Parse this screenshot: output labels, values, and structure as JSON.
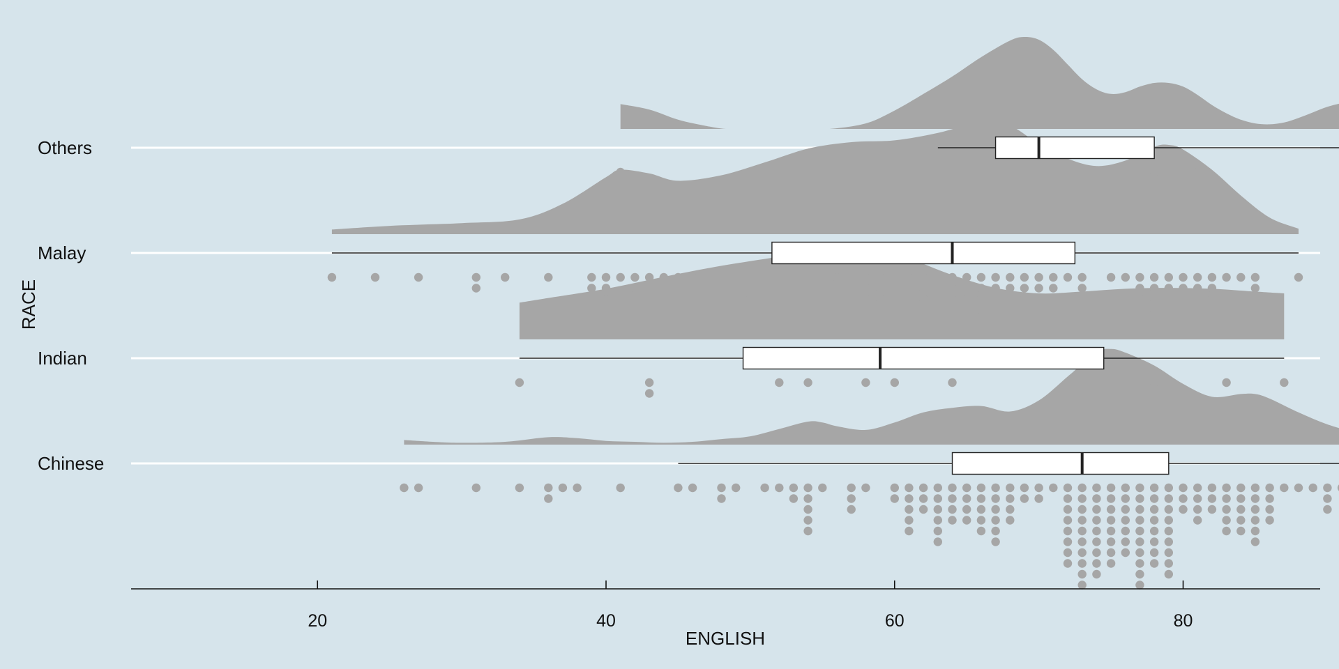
{
  "chart_data": {
    "type": "raincloud",
    "orientation": "horizontal",
    "title": "",
    "xlabel": "ENGLISH",
    "ylabel": "RACE",
    "xlim": [
      17,
      99
    ],
    "x_ticks": [
      20,
      40,
      60,
      80
    ],
    "grid": "horizontal gridlines at each category",
    "legend": "none",
    "colors": {
      "background": "#d6e4eb",
      "cloud": "#a6a6a6",
      "dots": "#a6a6a6",
      "box_fill": "#ffffff",
      "box_stroke": "#222222",
      "grid": "#ffffff",
      "axis": "#111111"
    },
    "categories": [
      "Others",
      "Malay",
      "Indian",
      "Chinese"
    ],
    "series": [
      {
        "name": "Others",
        "box": {
          "whisker_low": 63,
          "q1": 67,
          "median": 70,
          "q3": 78,
          "whisker_high": 92
        },
        "density": {
          "x": [
            41,
            43,
            45,
            47,
            48.3,
            50,
            52,
            54,
            55.5,
            58,
            60,
            62,
            64,
            66,
            68,
            69,
            70,
            71,
            72,
            73,
            74,
            75,
            76,
            77,
            78,
            79,
            80,
            81,
            82,
            83,
            84,
            85,
            86,
            87,
            88,
            89,
            90,
            91,
            92
          ],
          "y": [
            0.27,
            0.21,
            0.1,
            0.03,
            0.0,
            0.0,
            0.0,
            0.0,
            0.0,
            0.06,
            0.2,
            0.38,
            0.57,
            0.78,
            0.96,
            1.0,
            0.97,
            0.86,
            0.7,
            0.54,
            0.43,
            0.38,
            0.4,
            0.46,
            0.5,
            0.5,
            0.46,
            0.37,
            0.26,
            0.17,
            0.1,
            0.06,
            0.05,
            0.07,
            0.12,
            0.18,
            0.24,
            0.28,
            0.3
          ]
        },
        "points": [
          [
            41,
            1
          ],
          [
            63,
            1
          ],
          [
            67,
            1
          ],
          [
            68,
            1
          ],
          [
            70,
            1
          ],
          [
            71,
            1
          ],
          [
            78,
            1
          ],
          [
            81,
            1
          ],
          [
            92,
            1
          ]
        ]
      },
      {
        "name": "Malay",
        "box": {
          "whisker_low": 21,
          "q1": 51.5,
          "median": 64,
          "q3": 72.5,
          "whisker_high": 88
        },
        "density": {
          "x": [
            21,
            25,
            30,
            34,
            37,
            40,
            41,
            43,
            45,
            48,
            51,
            54,
            57,
            60,
            63,
            66,
            68,
            70,
            72,
            74,
            76,
            78,
            79,
            80,
            82,
            84,
            86,
            88
          ],
          "y": [
            0.05,
            0.09,
            0.12,
            0.16,
            0.33,
            0.62,
            0.7,
            0.66,
            0.58,
            0.64,
            0.78,
            0.93,
            1.0,
            1.02,
            1.1,
            1.22,
            1.18,
            0.98,
            0.82,
            0.74,
            0.8,
            0.95,
            0.97,
            0.92,
            0.7,
            0.42,
            0.18,
            0.06
          ]
        },
        "points": [
          [
            21,
            1
          ],
          [
            24,
            1
          ],
          [
            27,
            1
          ],
          [
            31,
            2
          ],
          [
            33,
            1
          ],
          [
            36,
            1
          ],
          [
            39,
            2
          ],
          [
            40,
            4
          ],
          [
            41,
            1
          ],
          [
            42,
            2
          ],
          [
            43,
            1
          ],
          [
            44,
            2
          ],
          [
            45,
            1
          ],
          [
            46,
            1
          ],
          [
            49,
            3
          ],
          [
            50,
            3
          ],
          [
            52,
            1
          ],
          [
            53,
            1
          ],
          [
            54,
            2
          ],
          [
            55,
            1
          ],
          [
            56,
            1
          ],
          [
            57,
            3
          ],
          [
            58,
            3
          ],
          [
            59,
            3
          ],
          [
            60,
            3
          ],
          [
            61,
            1
          ],
          [
            62,
            3
          ],
          [
            63,
            3
          ],
          [
            64,
            4
          ],
          [
            65,
            3
          ],
          [
            66,
            4
          ],
          [
            67,
            3
          ],
          [
            68,
            3
          ],
          [
            69,
            3
          ],
          [
            70,
            4
          ],
          [
            71,
            2
          ],
          [
            72,
            1
          ],
          [
            73,
            3
          ],
          [
            75,
            1
          ],
          [
            76,
            1
          ],
          [
            77,
            3
          ],
          [
            78,
            4
          ],
          [
            79,
            2
          ],
          [
            80,
            2
          ],
          [
            81,
            2
          ],
          [
            82,
            3
          ],
          [
            83,
            1
          ],
          [
            84,
            1
          ],
          [
            85,
            2
          ],
          [
            88,
            1
          ]
        ]
      },
      {
        "name": "Indian",
        "box": {
          "whisker_low": 34,
          "q1": 49.5,
          "median": 59,
          "q3": 74.5,
          "whisker_high": 87
        },
        "density": {
          "x": [
            34,
            36,
            40,
            44,
            48,
            52,
            55,
            57,
            59,
            61,
            64,
            67,
            70,
            73,
            76,
            79,
            82,
            85,
            87
          ],
          "y": [
            0.4,
            0.45,
            0.55,
            0.68,
            0.8,
            0.9,
            0.98,
            1.0,
            0.97,
            0.88,
            0.7,
            0.56,
            0.5,
            0.52,
            0.55,
            0.56,
            0.55,
            0.52,
            0.5
          ]
        },
        "points": [
          [
            34,
            1
          ],
          [
            43,
            2
          ],
          [
            52,
            1
          ],
          [
            54,
            1
          ],
          [
            58,
            1
          ],
          [
            60,
            1
          ],
          [
            64,
            1
          ],
          [
            78,
            1
          ],
          [
            83,
            1
          ],
          [
            87,
            1
          ]
        ]
      },
      {
        "name": "Chinese",
        "box": {
          "whisker_low": 45,
          "q1": 64,
          "median": 73,
          "q3": 79,
          "whisker_high": 95.8
        },
        "density": {
          "x": [
            26,
            28,
            30,
            33,
            36,
            38,
            40,
            42,
            44,
            46,
            48,
            50,
            52,
            54,
            55,
            56,
            58,
            60,
            62,
            64,
            66,
            68,
            70,
            72,
            74,
            75,
            76,
            78,
            80,
            82,
            84,
            85,
            86,
            88,
            90,
            92,
            94,
            95.8
          ],
          "y": [
            0.05,
            0.03,
            0.02,
            0.03,
            0.08,
            0.07,
            0.04,
            0.03,
            0.02,
            0.03,
            0.06,
            0.09,
            0.17,
            0.25,
            0.24,
            0.2,
            0.16,
            0.24,
            0.35,
            0.4,
            0.42,
            0.36,
            0.48,
            0.74,
            1.0,
            1.04,
            1.0,
            0.86,
            0.66,
            0.52,
            0.55,
            0.55,
            0.5,
            0.35,
            0.22,
            0.13,
            0.07,
            0.04
          ]
        },
        "points": [
          [
            26,
            1
          ],
          [
            27,
            1
          ],
          [
            31,
            1
          ],
          [
            34,
            1
          ],
          [
            36,
            2
          ],
          [
            37,
            1
          ],
          [
            38,
            1
          ],
          [
            41,
            1
          ],
          [
            45,
            1
          ],
          [
            46,
            1
          ],
          [
            48,
            2
          ],
          [
            49,
            1
          ],
          [
            51,
            1
          ],
          [
            52,
            1
          ],
          [
            53,
            2
          ],
          [
            54,
            5
          ],
          [
            55,
            1
          ],
          [
            57,
            3
          ],
          [
            58,
            1
          ],
          [
            60,
            2
          ],
          [
            61,
            5
          ],
          [
            62,
            3
          ],
          [
            63,
            6
          ],
          [
            64,
            4
          ],
          [
            65,
            4
          ],
          [
            66,
            5
          ],
          [
            67,
            6
          ],
          [
            68,
            4
          ],
          [
            69,
            2
          ],
          [
            70,
            2
          ],
          [
            71,
            1
          ],
          [
            72,
            8
          ],
          [
            73,
            10
          ],
          [
            74,
            9
          ],
          [
            75,
            8
          ],
          [
            76,
            7
          ],
          [
            77,
            10
          ],
          [
            78,
            8
          ],
          [
            79,
            9
          ],
          [
            80,
            3
          ],
          [
            81,
            4
          ],
          [
            82,
            3
          ],
          [
            83,
            5
          ],
          [
            84,
            5
          ],
          [
            85,
            6
          ],
          [
            86,
            4
          ],
          [
            87,
            1
          ],
          [
            88,
            1
          ],
          [
            89,
            1
          ],
          [
            90,
            3
          ],
          [
            91,
            1
          ],
          [
            93,
            2
          ],
          [
            95,
            1
          ]
        ]
      }
    ]
  }
}
